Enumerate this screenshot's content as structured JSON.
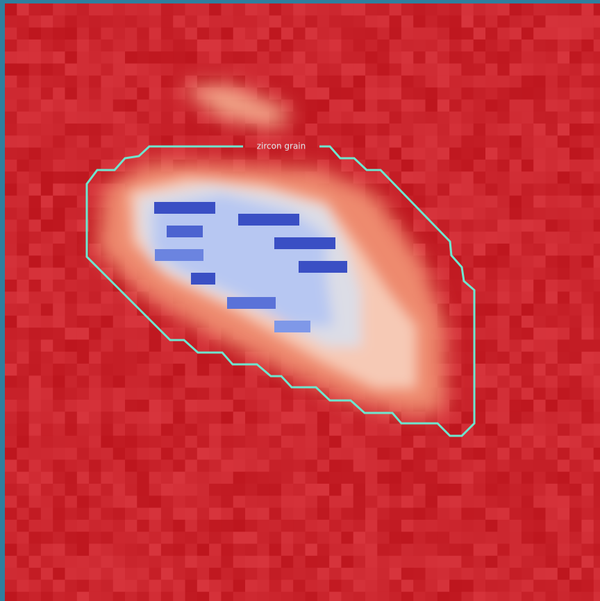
{
  "annotation": {
    "label": "zircon grain"
  }
}
